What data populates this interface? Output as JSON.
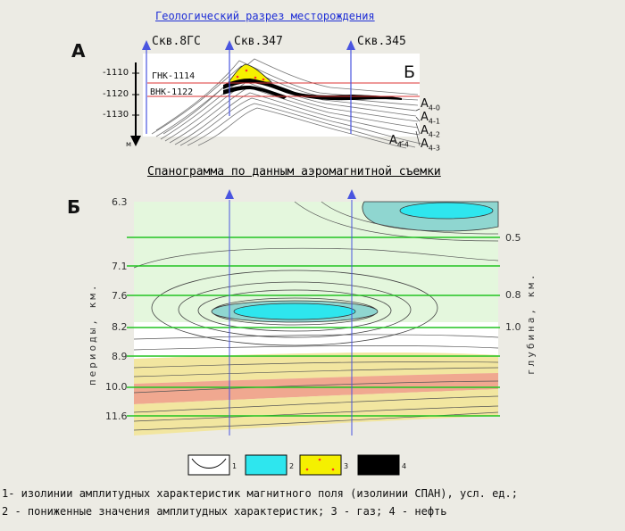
{
  "titles": {
    "section": "Геологический разрез месторождения",
    "spanogram": "Спанограмма по данным аэромагнитной съемки"
  },
  "panel_labels": {
    "a": "А",
    "b": "Б",
    "b_section": "Б"
  },
  "wells": [
    "Скв.8ГС",
    "Скв.347",
    "Скв.345"
  ],
  "depth_ticks": [
    "-1110",
    "-1120",
    "-1130"
  ],
  "depth_unit": "м",
  "contacts": {
    "gas_oil": "ГНК-1114",
    "oil_water": "ВНК-1122"
  },
  "layers": [
    {
      "base": "A",
      "sub": "4-0"
    },
    {
      "base": "A",
      "sub": "4-1"
    },
    {
      "base": "A",
      "sub": "4-2"
    },
    {
      "base": "A",
      "sub": "4-3"
    },
    {
      "base": "A",
      "sub": "4-4"
    }
  ],
  "periods": [
    "6.3",
    "7.1",
    "7.6",
    "8.2",
    "8.9",
    "10.0",
    "11.6"
  ],
  "depths": [
    "0.5",
    "0.8",
    "1.0"
  ],
  "axis_labels": {
    "left": "периоды, км.",
    "right": "глубина, км."
  },
  "legend_numbers": [
    "1",
    "2",
    "3",
    "4"
  ],
  "notes": [
    "1- изолинии амплитудных характеристик магнитного поля (изолинии СПАН), усл. ед.;",
    "2 -  пониженные значения амплитудных характеристик; 3 - газ;  4 - нефть"
  ],
  "colors": {
    "title": "#1f2fd6",
    "well_marker": "#4a55e0",
    "low_amplitude": "#2ee6ee",
    "gas": "#f5f000",
    "gas_dots": "#ff2a2a",
    "oil": "#000000",
    "depth_lines": "#21c421",
    "salmon": "#f0a890",
    "sand": "#f2e6a0",
    "pale_green": "#e4f7dd"
  }
}
